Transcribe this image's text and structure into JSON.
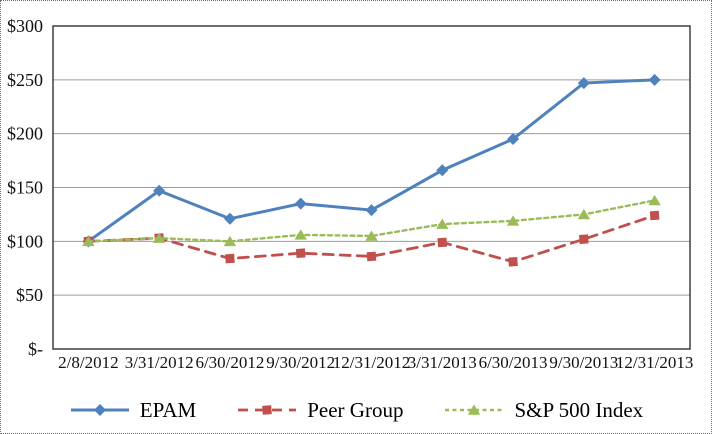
{
  "figure": {
    "background": "#ffffff",
    "outer_border_color": "#6f6f6f",
    "frame_color": "#3f3f3f",
    "gridline_color": "#9c9c9c"
  },
  "chart_data": {
    "type": "line",
    "title": "",
    "xlabel": "",
    "ylabel": "",
    "grid": true,
    "legend_position": "bottom",
    "ylim": [
      0,
      300
    ],
    "ytick_step": 50,
    "categories": [
      "2/8/2012",
      "3/31/2012",
      "6/30/2012",
      "9/30/2012",
      "12/31/2012",
      "3/31/2013",
      "6/30/2013",
      "9/30/2013",
      "12/31/2013"
    ],
    "yticks": [
      {
        "label": "$-",
        "value": 0
      },
      {
        "label": "$50",
        "value": 50
      },
      {
        "label": "$100",
        "value": 100
      },
      {
        "label": "$150",
        "value": 150
      },
      {
        "label": "$200",
        "value": 200
      },
      {
        "label": "$250",
        "value": 250
      },
      {
        "label": "$300",
        "value": 300
      }
    ],
    "series": [
      {
        "name": "EPAM",
        "color": "#4f81bd",
        "marker": "diamond",
        "line_style": "solid",
        "values": [
          100,
          147,
          121,
          135,
          129,
          166,
          195,
          247,
          250
        ]
      },
      {
        "name": "Peer Group",
        "color": "#c0504d",
        "marker": "square",
        "line_style": "dashed",
        "values": [
          100,
          103,
          84,
          89,
          86,
          99,
          81,
          102,
          124
        ]
      },
      {
        "name": "S&P 500 Index",
        "color": "#9bbb59",
        "marker": "triangle",
        "line_style": "short-dash",
        "values": [
          100,
          103,
          100,
          106,
          105,
          116,
          119,
          125,
          138
        ]
      }
    ]
  }
}
